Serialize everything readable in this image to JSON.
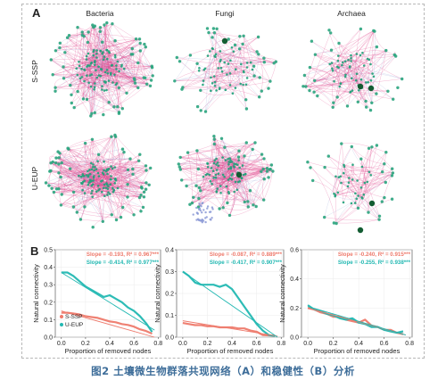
{
  "figure": {
    "panel_a_label": "A",
    "panel_b_label": "B",
    "columns": [
      "Bacteria",
      "Fungi",
      "Archaea"
    ],
    "rows": [
      "S-SSP",
      "U-EUP"
    ],
    "caption": "图2 土壤微生物群落共现网络（A）和稳健性（B）分析"
  },
  "colors": {
    "s_ssp": "#ee7a6c",
    "u_eup": "#22b8b2",
    "edge": "#e0458c",
    "node": "#2aa57e",
    "node_dark": "#135c32",
    "caption": "#3d6d99"
  },
  "networks": [
    {
      "domain": "Bacteria",
      "group": "S-SSP",
      "layout": "dense-core"
    },
    {
      "domain": "Fungi",
      "group": "S-SSP",
      "layout": "sparse-ring"
    },
    {
      "domain": "Archaea",
      "group": "S-SSP",
      "layout": "cluster"
    },
    {
      "domain": "Bacteria",
      "group": "U-EUP",
      "layout": "dense-core"
    },
    {
      "domain": "Fungi",
      "group": "U-EUP",
      "layout": "dense-core-with-satellite"
    },
    {
      "domain": "Archaea",
      "group": "U-EUP",
      "layout": "sparse-cluster"
    }
  ],
  "chart_data": [
    {
      "type": "line",
      "panel": "Bacteria",
      "xlabel": "Proportion of removed nodes",
      "ylabel": "Natural connectivity",
      "xlim": [
        -0.05,
        0.82
      ],
      "ylim": [
        0,
        0.5
      ],
      "xticks": [
        "0.0",
        "0.2",
        "0.4",
        "0.6",
        "0.8"
      ],
      "yticks": [
        "0.0",
        "0.1",
        "0.2",
        "0.3",
        "0.4",
        "0.5"
      ],
      "annotations": [
        "Slope = -0.193, R² = 0.967***",
        "Slope = -0.414, R² = 0.977***"
      ],
      "legend": {
        "position": "bottom-left",
        "entries": [
          "S-SSP",
          "U-EUP"
        ]
      },
      "series": [
        {
          "name": "S-SSP",
          "x": [
            0.0,
            0.05,
            0.1,
            0.15,
            0.2,
            0.25,
            0.3,
            0.35,
            0.4,
            0.45,
            0.5,
            0.55,
            0.6,
            0.65,
            0.7,
            0.75
          ],
          "y": [
            0.14,
            0.14,
            0.135,
            0.13,
            0.12,
            0.115,
            0.11,
            0.1,
            0.09,
            0.085,
            0.075,
            0.07,
            0.06,
            0.045,
            0.035,
            0.02
          ]
        },
        {
          "name": "U-EUP",
          "x": [
            0.0,
            0.05,
            0.1,
            0.15,
            0.2,
            0.25,
            0.3,
            0.35,
            0.4,
            0.45,
            0.5,
            0.55,
            0.6,
            0.65,
            0.7,
            0.75
          ],
          "y": [
            0.37,
            0.37,
            0.35,
            0.32,
            0.29,
            0.27,
            0.25,
            0.23,
            0.24,
            0.22,
            0.2,
            0.17,
            0.15,
            0.12,
            0.08,
            0.03
          ]
        }
      ],
      "fits": [
        {
          "name": "S-SSP",
          "x": [
            0.0,
            0.77
          ],
          "y": [
            0.15,
            0.0
          ]
        },
        {
          "name": "U-EUP",
          "x": [
            0.0,
            0.77
          ],
          "y": [
            0.37,
            0.04
          ]
        }
      ]
    },
    {
      "type": "line",
      "panel": "Fungi",
      "xlabel": "Proportion of removed nodes",
      "ylabel": "Natural connectivity",
      "xlim": [
        -0.05,
        0.82
      ],
      "ylim": [
        0,
        0.4
      ],
      "xticks": [
        "0.0",
        "0.2",
        "0.4",
        "0.6",
        "0.8"
      ],
      "yticks": [
        "0.0",
        "0.1",
        "0.2",
        "0.3",
        "0.4"
      ],
      "annotations": [
        "Slope = -0.087, R² = 0.889***",
        "Slope = -0.417, R² = 0.907***"
      ],
      "series": [
        {
          "name": "S-SSP",
          "x": [
            0.0,
            0.05,
            0.1,
            0.15,
            0.2,
            0.25,
            0.3,
            0.35,
            0.4,
            0.45,
            0.5,
            0.55,
            0.6,
            0.65,
            0.7,
            0.75
          ],
          "y": [
            0.065,
            0.06,
            0.055,
            0.055,
            0.05,
            0.05,
            0.045,
            0.045,
            0.045,
            0.04,
            0.04,
            0.03,
            0.025,
            0.01,
            0.008,
            0.006
          ]
        },
        {
          "name": "U-EUP",
          "x": [
            0.0,
            0.05,
            0.1,
            0.15,
            0.2,
            0.25,
            0.3,
            0.35,
            0.4,
            0.45,
            0.5,
            0.55,
            0.6,
            0.65,
            0.7,
            0.75
          ],
          "y": [
            0.3,
            0.28,
            0.25,
            0.24,
            0.24,
            0.24,
            0.23,
            0.24,
            0.22,
            0.18,
            0.14,
            0.1,
            0.06,
            0.03,
            0.01,
            0.005
          ]
        }
      ],
      "fits": [
        {
          "name": "S-SSP",
          "x": [
            0.0,
            0.77
          ],
          "y": [
            0.075,
            0.005
          ]
        },
        {
          "name": "U-EUP",
          "x": [
            0.0,
            0.77
          ],
          "y": [
            0.3,
            0.0
          ]
        }
      ]
    },
    {
      "type": "line",
      "panel": "Archaea",
      "xlabel": "Proportion of removed nodes",
      "ylabel": "Natural connectivity",
      "xlim": [
        -0.05,
        0.82
      ],
      "ylim": [
        0,
        0.6
      ],
      "xticks": [
        "0.0",
        "0.2",
        "0.4",
        "0.6",
        "0.8"
      ],
      "yticks": [
        "0.0",
        "0.2",
        "0.4",
        "0.6"
      ],
      "annotations": [
        "Slope = -0.240, R² = 0.915***",
        "Slope = -0.255, R² = 0.938***"
      ],
      "series": [
        {
          "name": "S-SSP",
          "x": [
            0.0,
            0.05,
            0.1,
            0.15,
            0.2,
            0.25,
            0.3,
            0.35,
            0.4,
            0.45,
            0.5,
            0.55,
            0.6,
            0.65,
            0.7,
            0.75
          ],
          "y": [
            0.2,
            0.19,
            0.17,
            0.16,
            0.14,
            0.14,
            0.12,
            0.11,
            0.1,
            0.12,
            0.08,
            0.07,
            0.05,
            0.05,
            0.03,
            0.02
          ]
        },
        {
          "name": "U-EUP",
          "x": [
            0.0,
            0.05,
            0.1,
            0.15,
            0.2,
            0.25,
            0.3,
            0.35,
            0.4,
            0.45,
            0.5,
            0.55,
            0.6,
            0.65,
            0.7,
            0.75
          ],
          "y": [
            0.22,
            0.19,
            0.18,
            0.16,
            0.15,
            0.13,
            0.12,
            0.13,
            0.1,
            0.09,
            0.07,
            0.07,
            0.05,
            0.04,
            0.03,
            0.04
          ]
        }
      ],
      "fits": [
        {
          "name": "S-SSP",
          "x": [
            0.0,
            0.77
          ],
          "y": [
            0.2,
            0.015
          ]
        },
        {
          "name": "U-EUP",
          "x": [
            0.0,
            0.77
          ],
          "y": [
            0.21,
            0.015
          ]
        }
      ]
    }
  ]
}
